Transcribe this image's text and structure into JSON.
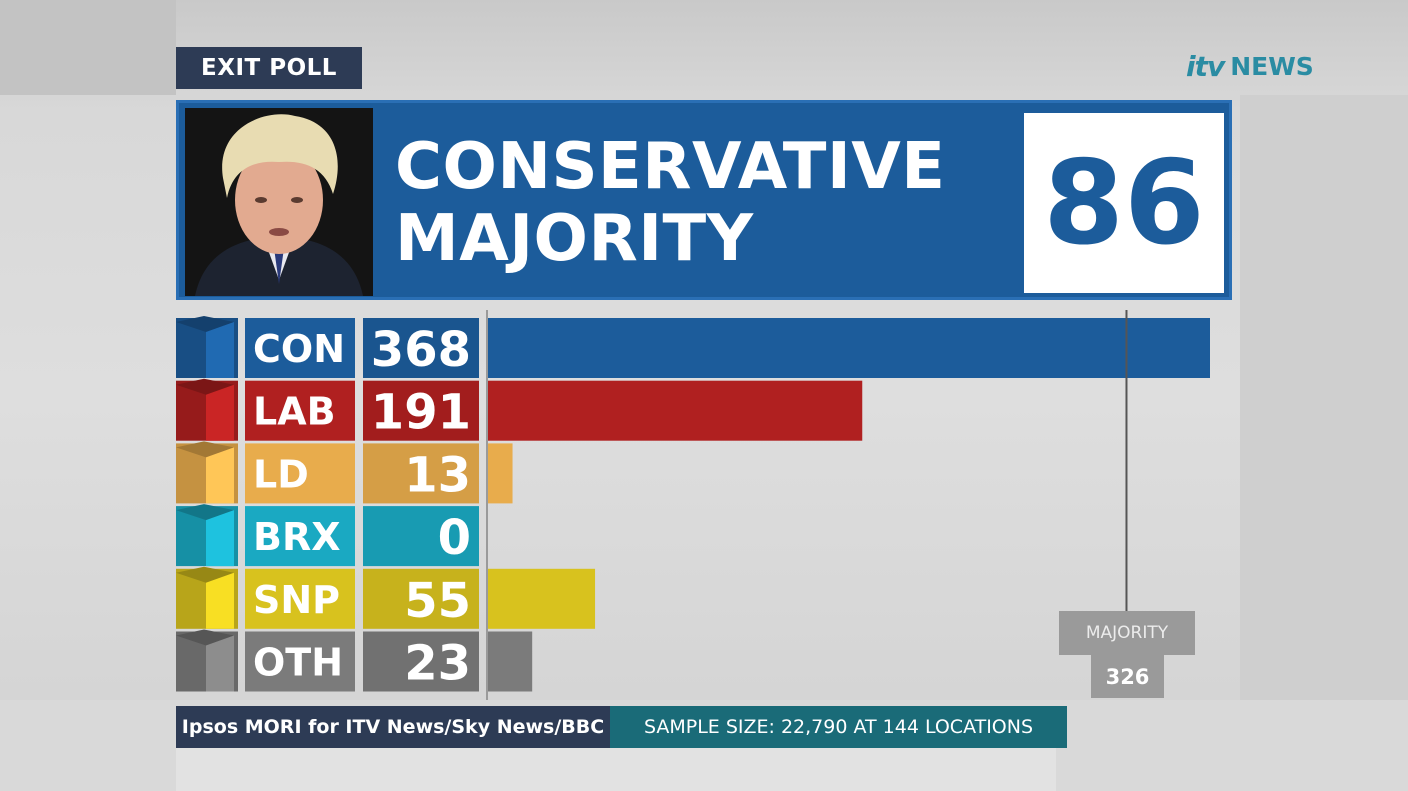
{
  "header": {
    "tag": "EXIT POLL",
    "logo_itv": "itv",
    "logo_news": "NEWS"
  },
  "banner": {
    "line1": "CONSERVATIVE",
    "line2": "MAJORITY",
    "majority": "86",
    "photo_icon": "person-portrait-icon"
  },
  "footer": {
    "source": "Ipsos MORI for ITV News/Sky News/BBC",
    "sample": "SAMPLE SIZE: 22,790 AT 144 LOCATIONS"
  },
  "majority_marker": {
    "label": "MAJORITY",
    "value": "326"
  },
  "colors": {
    "con": "#1c5c9b",
    "lab": "#b02020",
    "ld": "#e8ac4c",
    "brx": "#1aa9c2",
    "snp": "#d8c21e",
    "oth": "#7b7b7b",
    "banner": "#1c5c9b",
    "footer_dark": "#2d3b55",
    "footer_teal": "#1a6b78"
  },
  "chart_data": {
    "type": "bar",
    "orientation": "horizontal",
    "categories": [
      "CON",
      "LAB",
      "LD",
      "BRX",
      "SNP",
      "OTH"
    ],
    "values": [
      368,
      191,
      13,
      0,
      55,
      23
    ],
    "reference_line": {
      "label": "MAJORITY",
      "value": 326
    },
    "xlim": [
      0,
      368
    ]
  }
}
